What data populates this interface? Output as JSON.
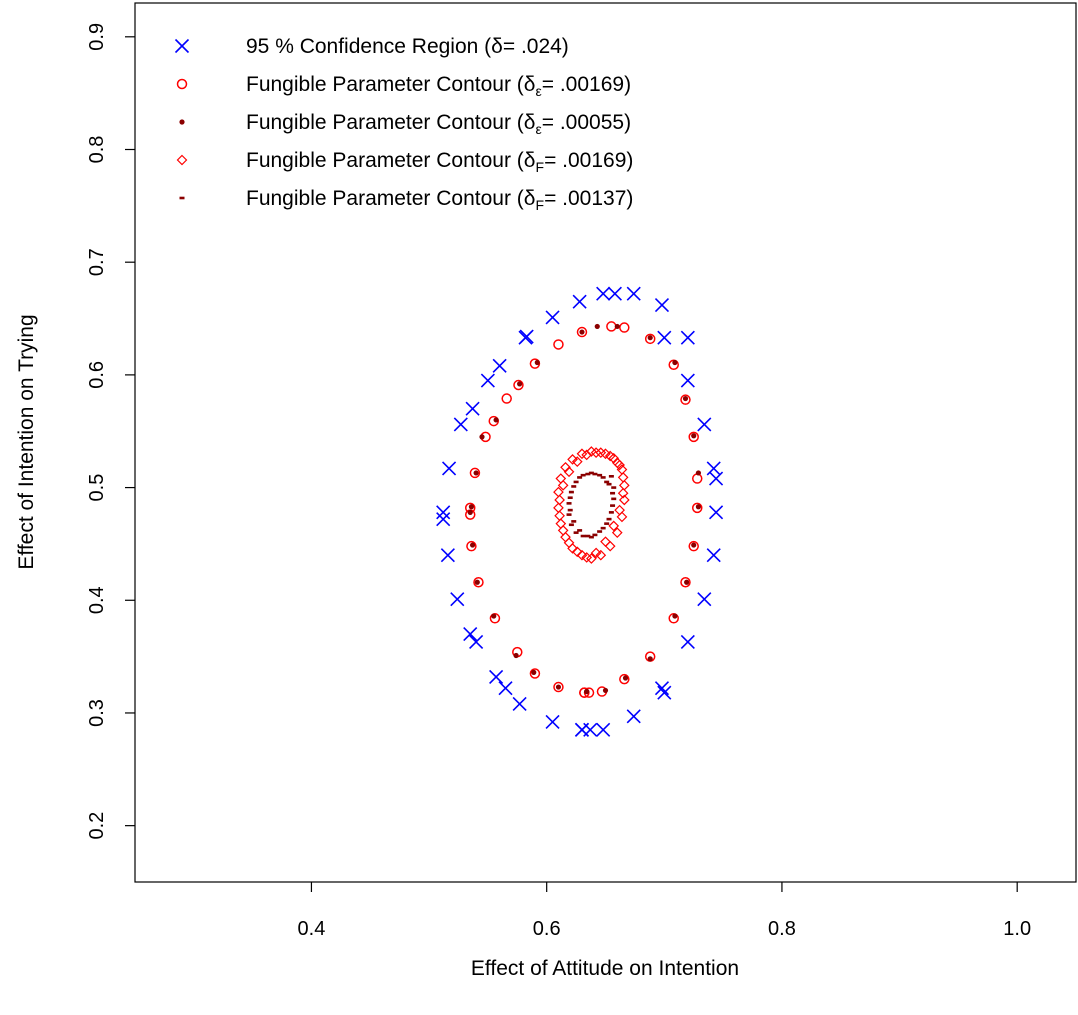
{
  "chart_data": {
    "type": "scatter",
    "title": "",
    "xlabel": "Effect of Attitude on Intention",
    "ylabel": "Effect of Intention on Trying",
    "xlim": [
      0.25,
      1.05
    ],
    "ylim": [
      0.15,
      0.93
    ],
    "xticks": [
      0.4,
      0.6,
      0.8,
      1.0
    ],
    "xtick_labels": [
      "0.4",
      "0.6",
      "0.8",
      "1.0"
    ],
    "yticks": [
      0.2,
      0.3,
      0.4,
      0.5,
      0.6,
      0.7,
      0.8,
      0.9
    ],
    "ytick_labels": [
      "0.2",
      "0.3",
      "0.4",
      "0.5",
      "0.6",
      "0.7",
      "0.8",
      "0.9"
    ],
    "grid": false,
    "legend_position": "top-left",
    "legend": [
      {
        "text": "95 % Confidence Region (δ= .024)",
        "marker": "x",
        "color": "#0000ff"
      },
      {
        "text": "Fungible Parameter Contour (δε= .00169)",
        "base": "Fungible Parameter Contour (δ",
        "sub": "ε",
        "tail": "= .00169)",
        "marker": "circle",
        "color": "#ff0000"
      },
      {
        "text": "Fungible Parameter Contour (δε= .00055)",
        "base": "Fungible Parameter Contour (δ",
        "sub": "ε",
        "tail": "= .00055)",
        "marker": "dot",
        "color": "#8b0000"
      },
      {
        "text": "Fungible Parameter Contour (δF= .00169)",
        "base": "Fungible Parameter Contour (δ",
        "sub": "F",
        "tail": "= .00169)",
        "marker": "diamond",
        "color": "#ff0000"
      },
      {
        "text": "Fungible Parameter Contour (δF= .00137)",
        "base": "Fungible Parameter Contour (δ",
        "sub": "F",
        "tail": "= .00137)",
        "marker": "dash",
        "color": "#8b0000"
      }
    ],
    "series": [
      {
        "name": "95 % Confidence Region (δ= .024)",
        "marker": "x",
        "color": "#0000ff",
        "x": [
          0.63,
          0.637,
          0.648,
          0.674,
          0.698,
          0.7,
          0.72,
          0.734,
          0.742,
          0.744,
          0.744,
          0.742,
          0.734,
          0.72,
          0.72,
          0.7,
          0.698,
          0.674,
          0.658,
          0.648,
          0.628,
          0.605,
          0.583,
          0.582,
          0.56,
          0.55,
          0.537,
          0.527,
          0.517,
          0.512,
          0.512,
          0.516,
          0.524,
          0.535,
          0.54,
          0.557,
          0.565,
          0.577,
          0.605,
          0.63
        ],
        "y": [
          0.285,
          0.285,
          0.285,
          0.297,
          0.322,
          0.318,
          0.363,
          0.401,
          0.44,
          0.478,
          0.508,
          0.517,
          0.556,
          0.595,
          0.633,
          0.633,
          0.662,
          0.672,
          0.672,
          0.672,
          0.665,
          0.651,
          0.634,
          0.633,
          0.608,
          0.595,
          0.57,
          0.556,
          0.517,
          0.478,
          0.472,
          0.44,
          0.401,
          0.37,
          0.363,
          0.332,
          0.322,
          0.308,
          0.292,
          0.285
        ]
      },
      {
        "name": "Fungible Parameter Contour (δε= .00169)",
        "marker": "circle",
        "color": "#ff0000",
        "x": [
          0.632,
          0.636,
          0.647,
          0.666,
          0.688,
          0.708,
          0.718,
          0.725,
          0.728,
          0.728,
          0.725,
          0.718,
          0.708,
          0.688,
          0.666,
          0.655,
          0.63,
          0.61,
          0.59,
          0.576,
          0.566,
          0.555,
          0.548,
          0.539,
          0.535,
          0.535,
          0.536,
          0.542,
          0.556,
          0.575,
          0.59,
          0.61,
          0.632
        ],
        "y": [
          0.318,
          0.318,
          0.319,
          0.33,
          0.35,
          0.384,
          0.416,
          0.448,
          0.482,
          0.508,
          0.545,
          0.578,
          0.609,
          0.632,
          0.642,
          0.643,
          0.638,
          0.627,
          0.61,
          0.591,
          0.579,
          0.559,
          0.545,
          0.513,
          0.482,
          0.476,
          0.448,
          0.416,
          0.384,
          0.354,
          0.335,
          0.323,
          0.318
        ]
      },
      {
        "name": "Fungible Parameter Contour (δε= .00055)",
        "marker": "dot",
        "color": "#8b0000",
        "x": [
          0.634,
          0.65,
          0.667,
          0.688,
          0.709,
          0.719,
          0.725,
          0.729,
          0.729,
          0.725,
          0.718,
          0.709,
          0.688,
          0.66,
          0.643,
          0.63,
          0.592,
          0.577,
          0.557,
          0.545,
          0.54,
          0.536,
          0.535,
          0.537,
          0.541,
          0.555,
          0.574,
          0.589,
          0.61,
          0.634
        ],
        "y": [
          0.319,
          0.32,
          0.331,
          0.348,
          0.386,
          0.416,
          0.449,
          0.483,
          0.513,
          0.546,
          0.579,
          0.611,
          0.633,
          0.643,
          0.643,
          0.638,
          0.611,
          0.592,
          0.56,
          0.545,
          0.513,
          0.483,
          0.478,
          0.449,
          0.416,
          0.386,
          0.351,
          0.336,
          0.323,
          0.319
        ]
      },
      {
        "name": "Fungible Parameter Contour (δF= .00169)",
        "marker": "diamond",
        "color": "#ff0000",
        "x": [
          0.638,
          0.646,
          0.654,
          0.66,
          0.664,
          0.666,
          0.666,
          0.664,
          0.66,
          0.654,
          0.646,
          0.638,
          0.63,
          0.622,
          0.616,
          0.612,
          0.61,
          0.61,
          0.612,
          0.616,
          0.622,
          0.63,
          0.634,
          0.642,
          0.65,
          0.657,
          0.662,
          0.665,
          0.665,
          0.662,
          0.657,
          0.65,
          0.642,
          0.634,
          0.626,
          0.619,
          0.614,
          0.611,
          0.611,
          0.614,
          0.619,
          0.626
        ],
        "y": [
          0.437,
          0.44,
          0.448,
          0.46,
          0.474,
          0.489,
          0.502,
          0.516,
          0.522,
          0.528,
          0.531,
          0.532,
          0.53,
          0.525,
          0.518,
          0.508,
          0.496,
          0.482,
          0.468,
          0.456,
          0.446,
          0.44,
          0.438,
          0.442,
          0.452,
          0.466,
          0.48,
          0.495,
          0.509,
          0.52,
          0.526,
          0.53,
          0.531,
          0.529,
          0.523,
          0.514,
          0.502,
          0.489,
          0.475,
          0.462,
          0.451,
          0.443
        ]
      },
      {
        "name": "Fungible Parameter Contour (δF= .00137)",
        "marker": "dash",
        "color": "#8b0000",
        "x": [
          0.638,
          0.645,
          0.651,
          0.655,
          0.657,
          0.657,
          0.655,
          0.651,
          0.645,
          0.638,
          0.631,
          0.625,
          0.621,
          0.619,
          0.619,
          0.621,
          0.625,
          0.631,
          0.641,
          0.648,
          0.653,
          0.656,
          0.656,
          0.653,
          0.648,
          0.641,
          0.635,
          0.628,
          0.623,
          0.62,
          0.62,
          0.623,
          0.628,
          0.635
        ],
        "y": [
          0.456,
          0.461,
          0.468,
          0.478,
          0.49,
          0.5,
          0.51,
          0.505,
          0.511,
          0.513,
          0.511,
          0.505,
          0.496,
          0.486,
          0.476,
          0.467,
          0.46,
          0.457,
          0.458,
          0.464,
          0.472,
          0.484,
          0.495,
          0.503,
          0.509,
          0.512,
          0.512,
          0.509,
          0.501,
          0.491,
          0.48,
          0.47,
          0.462,
          0.457
        ]
      }
    ]
  }
}
